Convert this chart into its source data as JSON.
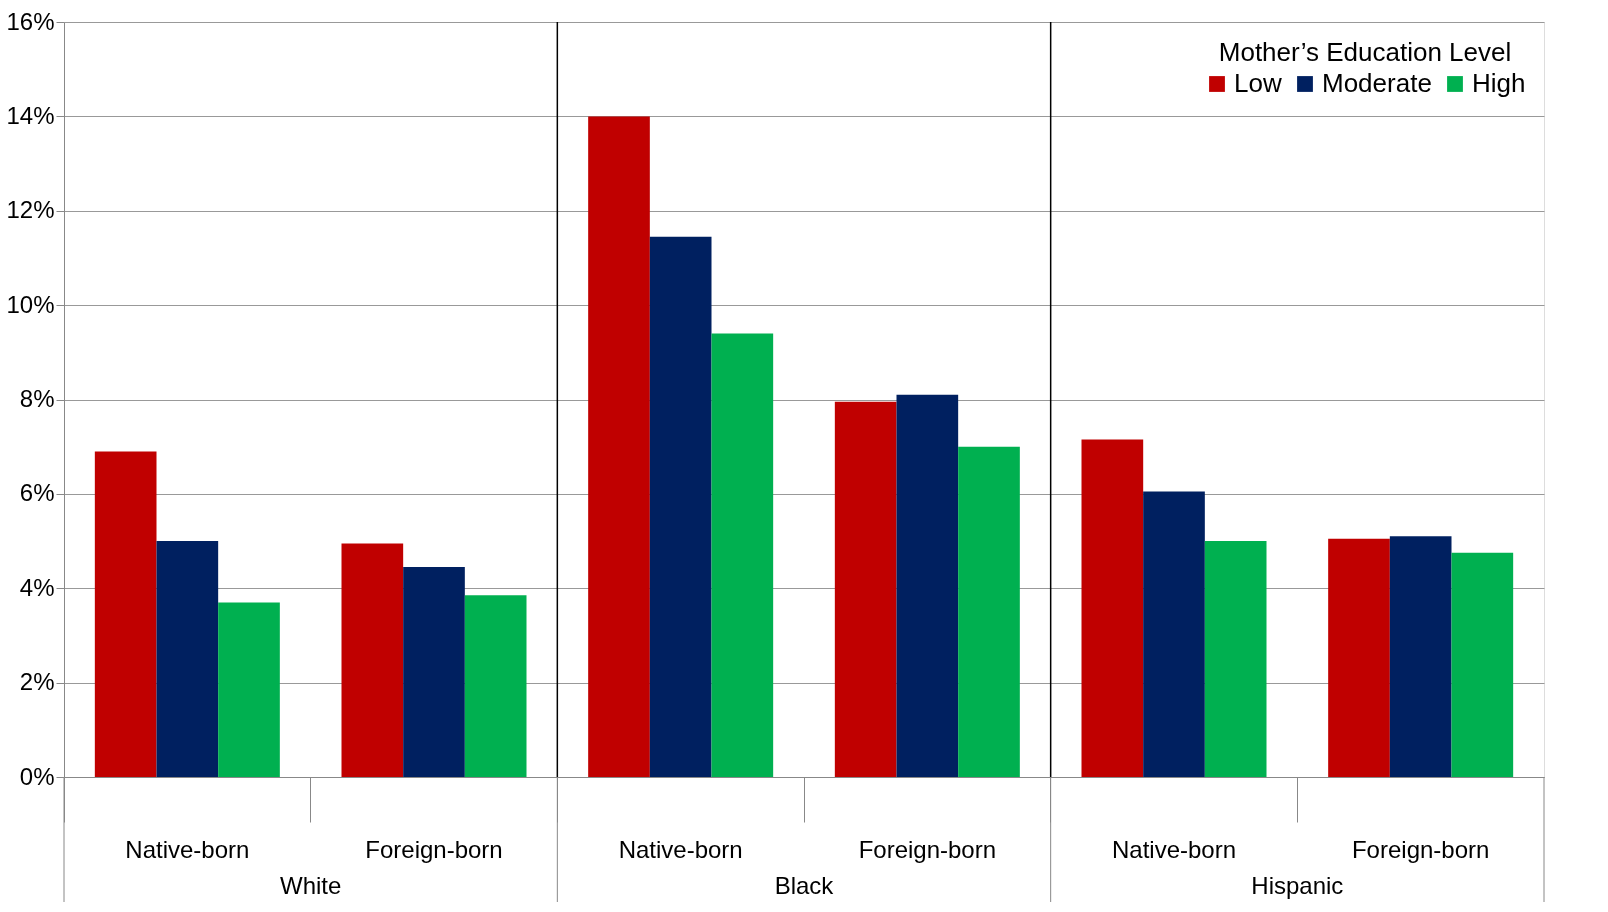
{
  "chart_data": {
    "type": "bar",
    "categories": [
      "Native-born",
      "Foreign-born",
      "Native-born",
      "Foreign-born",
      "Native-born",
      "Foreign-born"
    ],
    "legend_title": "Mother’s Education Level",
    "series": [
      {
        "name": "Low",
        "color": "#c00000",
        "values": [
          6.9,
          4.95,
          14.0,
          7.95,
          7.15,
          5.05
        ]
      },
      {
        "name": "Moderate",
        "color": "#002060",
        "values": [
          5.0,
          4.45,
          11.45,
          8.1,
          6.05,
          5.1
        ]
      },
      {
        "name": "High",
        "color": "#00b050",
        "values": [
          3.7,
          3.85,
          9.4,
          7.0,
          5.0,
          4.75
        ]
      }
    ],
    "annotations": [
      "White",
      "Black",
      "Hispanic"
    ],
    "ylim": [
      0,
      16
    ],
    "yticks": [
      {
        "value": 0,
        "label": "0%"
      },
      {
        "value": 2,
        "label": "2%"
      },
      {
        "value": 4,
        "label": "4%"
      },
      {
        "value": 6,
        "label": "6%"
      },
      {
        "value": 8,
        "label": "8%"
      },
      {
        "value": 10,
        "label": "10%"
      },
      {
        "value": 12,
        "label": "12%"
      },
      {
        "value": 14,
        "label": "14%"
      },
      {
        "value": 16,
        "label": "16%"
      }
    ],
    "grid": "y",
    "legend": "top right"
  }
}
